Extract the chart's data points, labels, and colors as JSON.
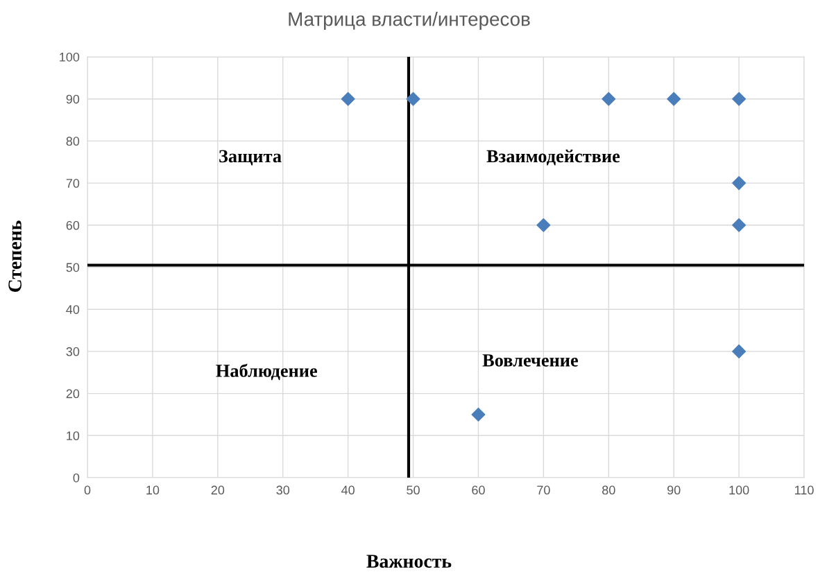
{
  "chart_data": {
    "type": "scatter",
    "title": "Матрица власти/интересов",
    "xlabel": "Важность",
    "ylabel": "Степень",
    "x": [
      40,
      50,
      80,
      90,
      100,
      100,
      70,
      100,
      100,
      60
    ],
    "series": [
      {
        "color": "#4a7ebb",
        "values": [
          90,
          90,
          90,
          90,
          90,
          70,
          60,
          60,
          30,
          15
        ]
      }
    ],
    "marker": "diamond",
    "grid": true,
    "legend": false,
    "xlim": [
      0,
      110
    ],
    "xticks": [
      0,
      10,
      20,
      30,
      40,
      50,
      60,
      70,
      80,
      90,
      100,
      110
    ],
    "ylim": [
      0,
      100
    ],
    "yticks": [
      0,
      10,
      20,
      30,
      40,
      50,
      60,
      70,
      80,
      90,
      100
    ],
    "ref_lines": [
      {
        "axis": "x",
        "value": 49.3,
        "label": null,
        "color": "#000000"
      },
      {
        "axis": "y",
        "value": 50.5,
        "label": null,
        "color": "#000000"
      }
    ],
    "annotations": [
      "Защита",
      "Взаимодействие",
      "Наблюдение",
      "Вовлечение"
    ]
  }
}
